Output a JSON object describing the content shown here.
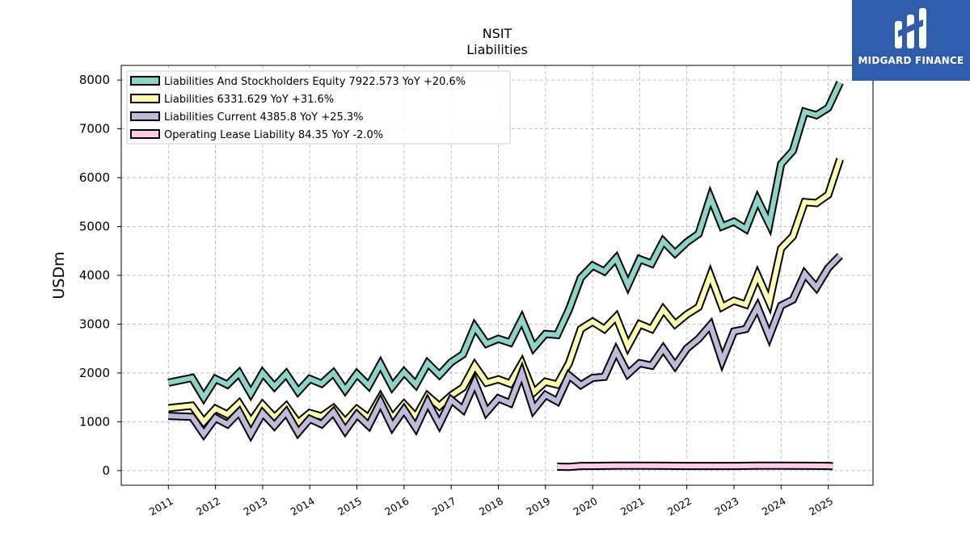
{
  "brand": {
    "name": "MIDGARD FINANCE",
    "logo_icon": "midgard-logo-icon",
    "bg": "#2f5cab"
  },
  "chart_data": {
    "type": "line",
    "title": "NSIT",
    "subtitle": "Liabilities",
    "ylabel": "USDm",
    "xlabel": "",
    "ylim": [
      -300,
      8300
    ],
    "xlim": [
      2010.0,
      2025.95
    ],
    "yticks": [
      0,
      1000,
      2000,
      3000,
      4000,
      5000,
      6000,
      7000,
      8000
    ],
    "xticks": [
      "2011",
      "2012",
      "2013",
      "2014",
      "2015",
      "2016",
      "2017",
      "2018",
      "2019",
      "2020",
      "2021",
      "2022",
      "2023",
      "2024",
      "2025"
    ],
    "grid": true,
    "legend_position": "top-left",
    "series": [
      {
        "name": "Liabilities And Stockholders Equity",
        "legend_label": "Liabilities And Stockholders Equity  7922.573 YoY +20.6%",
        "color": "#8dd3c7",
        "x": [
          2011.0,
          2011.5,
          2011.75,
          2012.0,
          2012.25,
          2012.5,
          2012.75,
          2013.0,
          2013.25,
          2013.5,
          2013.75,
          2014.0,
          2014.25,
          2014.5,
          2014.75,
          2015.0,
          2015.25,
          2015.5,
          2015.75,
          2016.0,
          2016.25,
          2016.5,
          2016.75,
          2017.0,
          2017.25,
          2017.5,
          2017.75,
          2018.0,
          2018.25,
          2018.5,
          2018.75,
          2019.0,
          2019.25,
          2019.5,
          2019.75,
          2020.0,
          2020.25,
          2020.5,
          2020.75,
          2021.0,
          2021.25,
          2021.5,
          2021.75,
          2022.0,
          2022.25,
          2022.5,
          2022.75,
          2023.0,
          2023.25,
          2023.5,
          2023.75,
          2024.0,
          2024.25,
          2024.5,
          2024.75,
          2025.0,
          2025.25
        ],
        "y": [
          1800,
          1900,
          1500,
          1880,
          1760,
          2000,
          1580,
          2000,
          1720,
          1980,
          1620,
          1880,
          1780,
          2000,
          1650,
          1980,
          1740,
          2180,
          1720,
          2020,
          1760,
          2200,
          1960,
          2220,
          2380,
          2950,
          2600,
          2700,
          2620,
          3100,
          2520,
          2800,
          2780,
          3300,
          3950,
          4200,
          4080,
          4350,
          3800,
          4330,
          4240,
          4700,
          4450,
          4680,
          4850,
          5600,
          5000,
          5100,
          4950,
          5550,
          5050,
          6280,
          6550,
          7350,
          7280,
          7430,
          7950
        ]
      },
      {
        "name": "Liabilities",
        "legend_label": "Liabilities  6331.629 YoY +31.6%",
        "color": "#ffffb3",
        "x": [
          2011.0,
          2011.5,
          2011.75,
          2012.0,
          2012.25,
          2012.5,
          2012.75,
          2013.0,
          2013.25,
          2013.5,
          2013.75,
          2014.0,
          2014.25,
          2014.5,
          2014.75,
          2015.0,
          2015.25,
          2015.5,
          2015.75,
          2016.0,
          2016.25,
          2016.5,
          2016.75,
          2017.0,
          2017.25,
          2017.5,
          2017.75,
          2018.0,
          2018.25,
          2018.5,
          2018.75,
          2019.0,
          2019.25,
          2019.5,
          2019.75,
          2020.0,
          2020.25,
          2020.5,
          2020.75,
          2021.0,
          2021.25,
          2021.5,
          2021.75,
          2022.0,
          2022.25,
          2022.5,
          2022.75,
          2023.0,
          2023.25,
          2023.5,
          2023.75,
          2024.0,
          2024.25,
          2024.5,
          2024.75,
          2025.0,
          2025.25
        ],
        "y": [
          1280,
          1330,
          1000,
          1270,
          1150,
          1380,
          1000,
          1350,
          1090,
          1320,
          980,
          1180,
          1110,
          1280,
          1000,
          1260,
          1080,
          1500,
          1080,
          1360,
          1100,
          1530,
          1320,
          1540,
          1700,
          2150,
          1800,
          1870,
          1780,
          2200,
          1600,
          1820,
          1760,
          2200,
          2900,
          3050,
          2900,
          3150,
          2550,
          3000,
          2900,
          3300,
          3000,
          3200,
          3350,
          4000,
          3350,
          3480,
          3400,
          4000,
          3450,
          4550,
          4800,
          5500,
          5480,
          5650,
          6380
        ]
      },
      {
        "name": "Liabilities Current",
        "legend_label": "Liabilities Current  4385.8 YoY +25.3%",
        "color": "#bebada",
        "x": [
          2011.0,
          2011.5,
          2011.75,
          2012.0,
          2012.25,
          2012.5,
          2012.75,
          2013.0,
          2013.25,
          2013.5,
          2013.75,
          2014.0,
          2014.25,
          2014.5,
          2014.75,
          2015.0,
          2015.25,
          2015.5,
          2015.75,
          2016.0,
          2016.25,
          2016.5,
          2016.75,
          2017.0,
          2017.25,
          2017.5,
          2017.75,
          2018.0,
          2018.25,
          2018.5,
          2018.75,
          2019.0,
          2019.25,
          2019.5,
          2019.75,
          2020.0,
          2020.25,
          2020.5,
          2020.75,
          2021.0,
          2021.25,
          2021.5,
          2021.75,
          2022.0,
          2022.25,
          2022.5,
          2022.75,
          2023.0,
          2023.25,
          2023.5,
          2023.75,
          2024.0,
          2024.25,
          2024.5,
          2024.75,
          2025.0,
          2025.25
        ],
        "y": [
          1120,
          1100,
          750,
          1080,
          950,
          1200,
          750,
          1180,
          920,
          1200,
          780,
          1060,
          950,
          1200,
          820,
          1150,
          920,
          1400,
          900,
          1250,
          880,
          1400,
          950,
          1450,
          1250,
          1800,
          1200,
          1480,
          1380,
          2000,
          1250,
          1550,
          1420,
          1950,
          1750,
          1900,
          1920,
          2450,
          1980,
          2200,
          2150,
          2500,
          2150,
          2500,
          2700,
          2980,
          2250,
          2850,
          2900,
          3350,
          2750,
          3380,
          3500,
          4030,
          3750,
          4150,
          4400
        ]
      },
      {
        "name": "Operating Lease Liability",
        "legend_label": "Operating Lease Liability  84.35 YoY -2.0%",
        "color": "#fccde5",
        "x": [
          2019.25,
          2019.5,
          2019.75,
          2020.0,
          2020.5,
          2021.0,
          2021.5,
          2022.0,
          2022.5,
          2023.0,
          2023.5,
          2024.0,
          2024.5,
          2025.0,
          2025.1
        ],
        "y": [
          80,
          75,
          95,
          95,
          100,
          100,
          98,
          96,
          96,
          96,
          100,
          100,
          98,
          96,
          90
        ]
      }
    ]
  }
}
